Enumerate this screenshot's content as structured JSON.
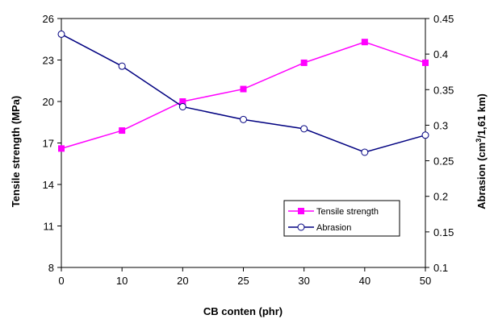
{
  "chart_data": {
    "type": "line",
    "categories": [
      "0",
      "10",
      "20",
      "25",
      "30",
      "40",
      "50"
    ],
    "xlabel": "CB conten (phr)",
    "ylabel_left": "Tensile strength (MPa)",
    "ylabel_right_parts": [
      "Abrasion (cm",
      "3",
      "/1,61 km)"
    ],
    "y_left": {
      "min": 8,
      "max": 26,
      "ticks": [
        "8",
        "11",
        "14",
        "17",
        "20",
        "23",
        "26"
      ]
    },
    "y_right": {
      "min": 0.1,
      "max": 0.45,
      "ticks": [
        "0.1",
        "0.15",
        "0.2",
        "0.25",
        "0.3",
        "0.35",
        "0.4",
        "0.45"
      ]
    },
    "grid": false,
    "legend_position": "right-middle",
    "series": [
      {
        "name": "Tensile strength",
        "axis": "left",
        "color": "#ff00ff",
        "marker": "square",
        "values": [
          16.6,
          17.9,
          20.0,
          20.9,
          22.8,
          24.3,
          22.8
        ]
      },
      {
        "name": "Abrasion",
        "axis": "right",
        "color": "#000080",
        "marker": "circle",
        "values": [
          0.428,
          0.383,
          0.326,
          0.308,
          0.295,
          0.262,
          0.286
        ]
      }
    ]
  }
}
